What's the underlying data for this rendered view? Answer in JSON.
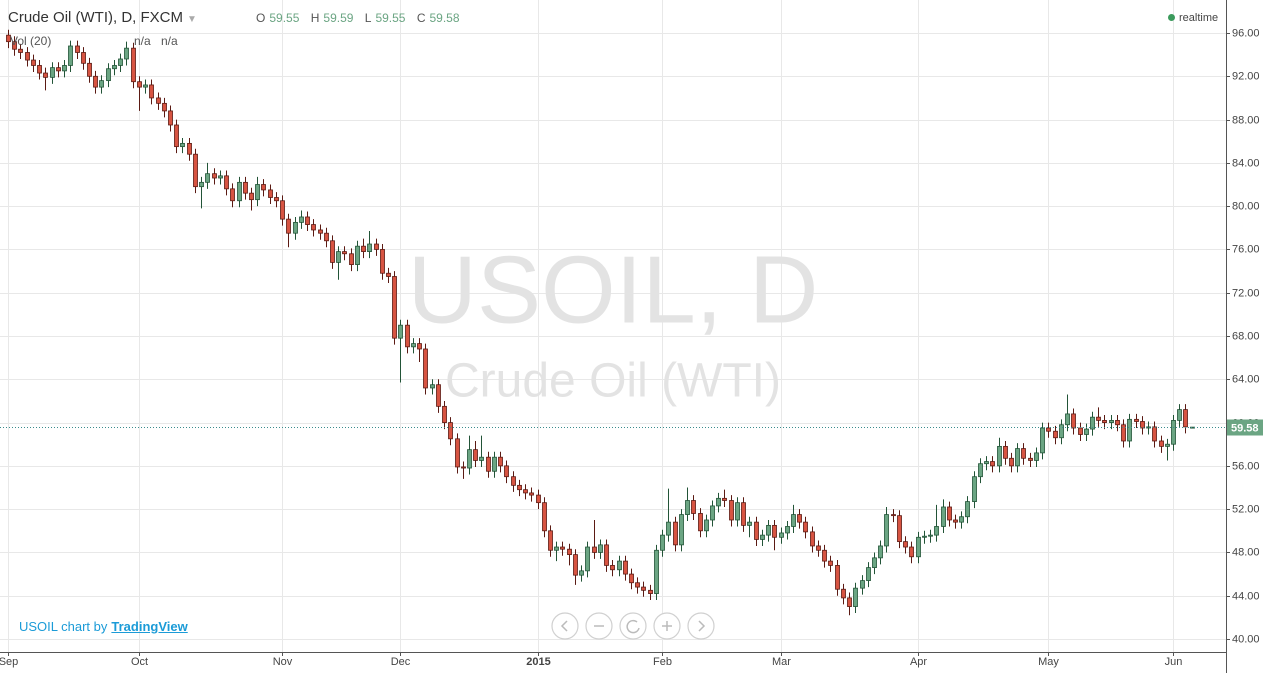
{
  "chart_data": {
    "type": "candlestick",
    "title": "Crude Oil (WTI), D, FXCM",
    "ohlc_labels": [
      "O",
      "H",
      "L",
      "C"
    ],
    "indicator": "Vol (20)",
    "indicator_values": [
      "n/a",
      "n/a"
    ],
    "status": "realtime",
    "watermark": [
      "USOIL, D",
      "Crude Oil (WTI)"
    ],
    "credit": "USOIL chart by",
    "credit_link": "TradingView",
    "up_color": "#6ba583",
    "down_color": "#d75442",
    "grid": true,
    "categories": [
      "Sep",
      null,
      null,
      null,
      null,
      null,
      null,
      null,
      null,
      null,
      null,
      null,
      null,
      null,
      null,
      null,
      null,
      null,
      null,
      null,
      null,
      "Oct",
      null,
      null,
      null,
      null,
      null,
      null,
      null,
      null,
      null,
      null,
      null,
      null,
      null,
      null,
      null,
      null,
      null,
      null,
      null,
      null,
      null,
      null,
      "Nov",
      null,
      null,
      null,
      null,
      null,
      null,
      null,
      null,
      null,
      null,
      null,
      null,
      null,
      null,
      null,
      null,
      null,
      null,
      "Dec",
      null,
      null,
      null,
      null,
      null,
      null,
      null,
      null,
      null,
      null,
      null,
      null,
      null,
      null,
      null,
      null,
      null,
      null,
      null,
      null,
      null,
      "2015",
      null,
      null,
      null,
      null,
      null,
      null,
      null,
      null,
      null,
      null,
      null,
      null,
      null,
      null,
      null,
      null,
      null,
      null,
      null,
      "Feb",
      null,
      null,
      null,
      null,
      null,
      null,
      null,
      null,
      null,
      null,
      null,
      null,
      null,
      null,
      null,
      null,
      null,
      null,
      "Mar",
      null,
      null,
      null,
      null,
      null,
      null,
      null,
      null,
      null,
      null,
      null,
      null,
      null,
      null,
      null,
      null,
      null,
      null,
      null,
      null,
      null,
      "Apr",
      null,
      null,
      null,
      null,
      null,
      null,
      null,
      null,
      null,
      null,
      null,
      null,
      null,
      null,
      null,
      null,
      null,
      null,
      null,
      null,
      "May",
      null,
      null,
      null,
      null,
      null,
      null,
      null,
      null,
      null,
      null,
      null,
      null,
      null,
      null,
      null,
      null,
      null,
      null,
      null,
      "Jun",
      null,
      null,
      null
    ],
    "open": [
      95.8,
      95.2,
      94.5,
      94.2,
      93.5,
      93.0,
      92.3,
      91.9,
      92.8,
      92.5,
      93.0,
      94.8,
      94.2,
      93.2,
      92.0,
      91.0,
      91.6,
      92.7,
      93.0,
      93.6,
      94.6,
      91.5,
      91.0,
      91.2,
      90.0,
      89.5,
      88.8,
      87.5,
      85.5,
      85.8,
      84.8,
      81.8,
      82.2,
      83.0,
      82.6,
      82.8,
      81.6,
      80.5,
      82.2,
      81.2,
      80.6,
      82.0,
      81.5,
      80.8,
      80.5,
      78.8,
      77.5,
      78.5,
      79.0,
      78.3,
      77.8,
      77.5,
      76.8,
      74.8,
      75.8,
      75.6,
      74.6,
      76.3,
      75.8,
      76.5,
      76.0,
      73.8,
      73.5,
      67.8,
      69.0,
      67.0,
      67.3,
      66.8,
      63.2,
      63.5,
      61.5,
      60.0,
      58.5,
      55.9,
      55.8,
      57.5,
      56.5,
      56.8,
      55.5,
      56.8,
      56.0,
      55.0,
      54.2,
      53.8,
      53.5,
      53.3,
      52.6,
      50.0,
      48.2,
      48.5,
      48.3,
      47.8,
      45.9,
      46.3,
      48.5,
      48.0,
      48.7,
      46.8,
      46.4,
      47.2,
      46.0,
      45.2,
      44.8,
      44.5,
      44.2,
      48.2,
      49.6,
      50.8,
      48.7,
      51.5,
      52.8,
      51.6,
      50.0,
      51.0,
      52.3,
      53.0,
      52.8,
      51.0,
      52.6,
      50.5,
      50.8,
      49.2,
      49.6,
      50.5,
      49.4,
      49.8,
      50.4,
      51.5,
      50.8,
      49.9,
      48.6,
      48.2,
      47.2,
      46.8,
      44.6,
      43.8,
      43.0,
      44.7,
      45.4,
      46.6,
      47.5,
      48.6,
      51.5,
      51.4,
      49.0,
      48.5,
      47.6,
      49.4,
      49.5,
      49.6,
      50.4,
      52.2,
      51.0,
      50.8,
      51.3,
      52.7,
      55.0,
      56.2,
      56.4,
      56.0,
      57.8,
      56.7,
      56.0,
      57.6,
      56.7,
      56.5,
      57.2,
      59.5,
      59.2,
      58.6,
      59.8,
      60.8,
      59.5,
      58.9,
      59.4,
      60.5,
      60.2,
      60.0,
      60.2,
      59.8,
      58.3,
      60.3,
      60.1,
      59.5,
      59.6,
      58.3,
      57.8,
      58.0,
      60.2,
      61.2,
      59.55
    ],
    "high": [
      96.3,
      95.7,
      95.0,
      94.7,
      94.0,
      93.5,
      92.8,
      93.3,
      93.3,
      93.5,
      95.3,
      95.3,
      94.7,
      93.7,
      92.5,
      92.1,
      93.2,
      93.5,
      94.1,
      95.2,
      95.1,
      92.0,
      91.7,
      91.7,
      90.5,
      90.0,
      89.3,
      88.0,
      86.3,
      86.3,
      85.3,
      82.7,
      84.0,
      83.5,
      83.3,
      83.3,
      82.1,
      82.7,
      82.7,
      81.7,
      82.7,
      82.5,
      82.0,
      81.3,
      81.0,
      79.3,
      79.0,
      79.6,
      79.5,
      78.8,
      78.3,
      78.0,
      77.3,
      76.3,
      76.3,
      76.1,
      76.8,
      77.0,
      77.7,
      77.0,
      76.5,
      74.3,
      74.0,
      69.5,
      69.5,
      67.8,
      67.8,
      67.3,
      64.0,
      64.0,
      62.0,
      60.5,
      59.0,
      56.4,
      58.8,
      58.3,
      58.8,
      57.3,
      57.3,
      57.3,
      56.5,
      55.5,
      54.7,
      54.3,
      54.0,
      53.8,
      53.1,
      50.5,
      49.0,
      49.0,
      48.8,
      48.3,
      46.8,
      49.0,
      51.0,
      49.2,
      49.2,
      47.3,
      47.7,
      47.7,
      46.5,
      45.7,
      45.3,
      45.0,
      48.7,
      50.1,
      53.9,
      51.3,
      52.0,
      54.0,
      53.3,
      52.1,
      51.5,
      52.8,
      53.5,
      53.8,
      53.3,
      53.1,
      53.1,
      51.3,
      51.3,
      50.1,
      51.0,
      51.0,
      50.3,
      50.9,
      52.4,
      52.0,
      51.3,
      50.4,
      49.1,
      48.7,
      47.7,
      47.3,
      45.1,
      44.3,
      45.2,
      45.9,
      47.1,
      48.0,
      49.1,
      52.2,
      52.0,
      51.9,
      49.5,
      49.0,
      49.9,
      50.0,
      50.1,
      52.4,
      52.9,
      52.7,
      51.5,
      51.8,
      53.2,
      55.5,
      56.7,
      56.9,
      56.9,
      58.6,
      58.3,
      57.2,
      58.1,
      58.1,
      57.2,
      57.7,
      60.0,
      60.0,
      59.7,
      60.3,
      62.6,
      61.3,
      60.0,
      59.9,
      61.0,
      61.4,
      60.7,
      60.7,
      60.7,
      60.3,
      60.8,
      60.8,
      60.6,
      60.1,
      60.1,
      58.8,
      58.5,
      60.7,
      61.7,
      61.7,
      59.59
    ],
    "low": [
      94.6,
      93.9,
      93.6,
      92.9,
      92.4,
      91.7,
      90.7,
      91.3,
      91.9,
      91.9,
      92.4,
      93.6,
      92.6,
      91.4,
      90.4,
      90.4,
      91.0,
      92.1,
      92.4,
      93.0,
      90.9,
      88.8,
      90.4,
      89.4,
      88.9,
      88.2,
      86.9,
      84.9,
      84.9,
      84.2,
      81.2,
      79.8,
      81.6,
      82.0,
      82.0,
      81.0,
      79.9,
      79.9,
      80.6,
      79.6,
      80.0,
      80.9,
      80.2,
      79.9,
      78.2,
      76.2,
      76.9,
      77.9,
      77.7,
      77.2,
      76.9,
      76.2,
      74.2,
      73.2,
      75.0,
      74.0,
      74.0,
      75.2,
      75.2,
      75.4,
      73.2,
      72.9,
      67.2,
      63.7,
      66.4,
      66.4,
      65.6,
      62.6,
      62.6,
      60.9,
      59.4,
      57.9,
      55.3,
      54.8,
      55.2,
      55.9,
      55.9,
      54.9,
      54.9,
      55.4,
      54.4,
      53.6,
      53.2,
      52.9,
      52.7,
      52.0,
      49.4,
      47.6,
      47.2,
      47.7,
      46.8,
      45.0,
      45.3,
      45.7,
      47.4,
      47.4,
      46.2,
      45.8,
      45.8,
      45.4,
      44.6,
      44.2,
      43.9,
      43.6,
      43.6,
      47.6,
      49.0,
      48.1,
      48.1,
      50.9,
      51.0,
      49.4,
      49.4,
      50.4,
      51.7,
      52.2,
      50.4,
      50.4,
      49.9,
      49.4,
      48.6,
      48.6,
      49.0,
      48.2,
      48.8,
      49.2,
      49.8,
      50.2,
      49.3,
      48.0,
      47.6,
      46.6,
      46.2,
      44.0,
      43.2,
      42.2,
      42.4,
      44.1,
      44.8,
      46.0,
      46.9,
      48.0,
      50.8,
      48.4,
      47.9,
      47.0,
      47.0,
      48.8,
      48.9,
      49.0,
      49.8,
      50.4,
      50.2,
      50.2,
      50.7,
      52.1,
      54.4,
      55.6,
      55.4,
      55.4,
      56.1,
      55.4,
      55.4,
      56.1,
      55.9,
      55.9,
      56.6,
      58.6,
      58.0,
      58.0,
      59.2,
      58.9,
      58.3,
      58.3,
      58.8,
      59.6,
      59.4,
      59.4,
      59.2,
      57.7,
      57.7,
      59.5,
      58.9,
      58.9,
      57.7,
      57.2,
      56.5,
      57.4,
      59.6,
      59.0,
      59.55
    ],
    "close": [
      95.2,
      94.5,
      94.2,
      93.5,
      93.0,
      92.3,
      91.9,
      92.8,
      92.5,
      93.0,
      94.8,
      94.2,
      93.2,
      92.0,
      91.0,
      91.6,
      92.7,
      93.0,
      93.6,
      94.6,
      91.5,
      91.0,
      91.2,
      90.0,
      89.5,
      88.8,
      87.5,
      85.5,
      85.8,
      84.8,
      81.8,
      82.2,
      83.0,
      82.6,
      82.8,
      81.6,
      80.5,
      82.2,
      81.2,
      80.6,
      82.0,
      81.5,
      80.8,
      80.5,
      78.8,
      77.5,
      78.5,
      79.0,
      78.3,
      77.8,
      77.5,
      76.8,
      74.8,
      75.8,
      75.6,
      74.6,
      76.3,
      75.8,
      76.5,
      76.0,
      73.8,
      73.5,
      67.8,
      69.0,
      67.0,
      67.3,
      66.8,
      63.2,
      63.5,
      61.5,
      60.0,
      58.5,
      55.9,
      55.8,
      57.5,
      56.5,
      56.8,
      55.5,
      56.8,
      56.0,
      55.0,
      54.2,
      53.8,
      53.5,
      53.3,
      52.6,
      50.0,
      48.2,
      48.5,
      48.3,
      47.8,
      45.9,
      46.3,
      48.5,
      48.0,
      48.7,
      46.8,
      46.4,
      47.2,
      46.0,
      45.2,
      44.8,
      44.5,
      44.2,
      48.2,
      49.6,
      50.8,
      48.7,
      51.5,
      52.8,
      51.6,
      50.0,
      51.0,
      52.3,
      53.0,
      52.8,
      51.0,
      52.6,
      50.5,
      50.8,
      49.2,
      49.6,
      50.5,
      49.4,
      49.8,
      50.4,
      51.5,
      50.8,
      49.9,
      48.6,
      48.2,
      47.2,
      46.8,
      44.6,
      43.8,
      43.0,
      44.7,
      45.4,
      46.6,
      47.5,
      48.6,
      51.5,
      51.4,
      49.0,
      48.5,
      47.6,
      49.4,
      49.5,
      49.6,
      50.4,
      52.2,
      51.0,
      50.8,
      51.3,
      52.7,
      55.0,
      56.2,
      56.4,
      56.0,
      57.8,
      56.7,
      56.0,
      57.6,
      56.7,
      56.5,
      57.2,
      59.5,
      59.2,
      58.6,
      59.8,
      60.8,
      59.5,
      58.9,
      59.4,
      60.5,
      60.2,
      60.0,
      60.2,
      59.8,
      58.3,
      60.3,
      60.1,
      59.5,
      59.6,
      58.3,
      57.8,
      58.0,
      60.2,
      61.2,
      59.6,
      59.58
    ],
    "ylim": [
      38.8,
      99.05
    ],
    "yticks": [
      {
        "value": 40,
        "label": "40.00"
      },
      {
        "value": 44,
        "label": "44.00"
      },
      {
        "value": 48,
        "label": "48.00"
      },
      {
        "value": 52,
        "label": "52.00"
      },
      {
        "value": 56,
        "label": "56.00"
      },
      {
        "value": 60,
        "label": "60.00"
      },
      {
        "value": 64,
        "label": "64.00"
      },
      {
        "value": 68,
        "label": "68.00"
      },
      {
        "value": 72,
        "label": "72.00"
      },
      {
        "value": 76,
        "label": "76.00"
      },
      {
        "value": 80,
        "label": "80.00"
      },
      {
        "value": 84,
        "label": "84.00"
      },
      {
        "value": 88,
        "label": "88.00"
      },
      {
        "value": 92,
        "label": "92.00"
      },
      {
        "value": 96,
        "label": "96.00"
      }
    ]
  }
}
